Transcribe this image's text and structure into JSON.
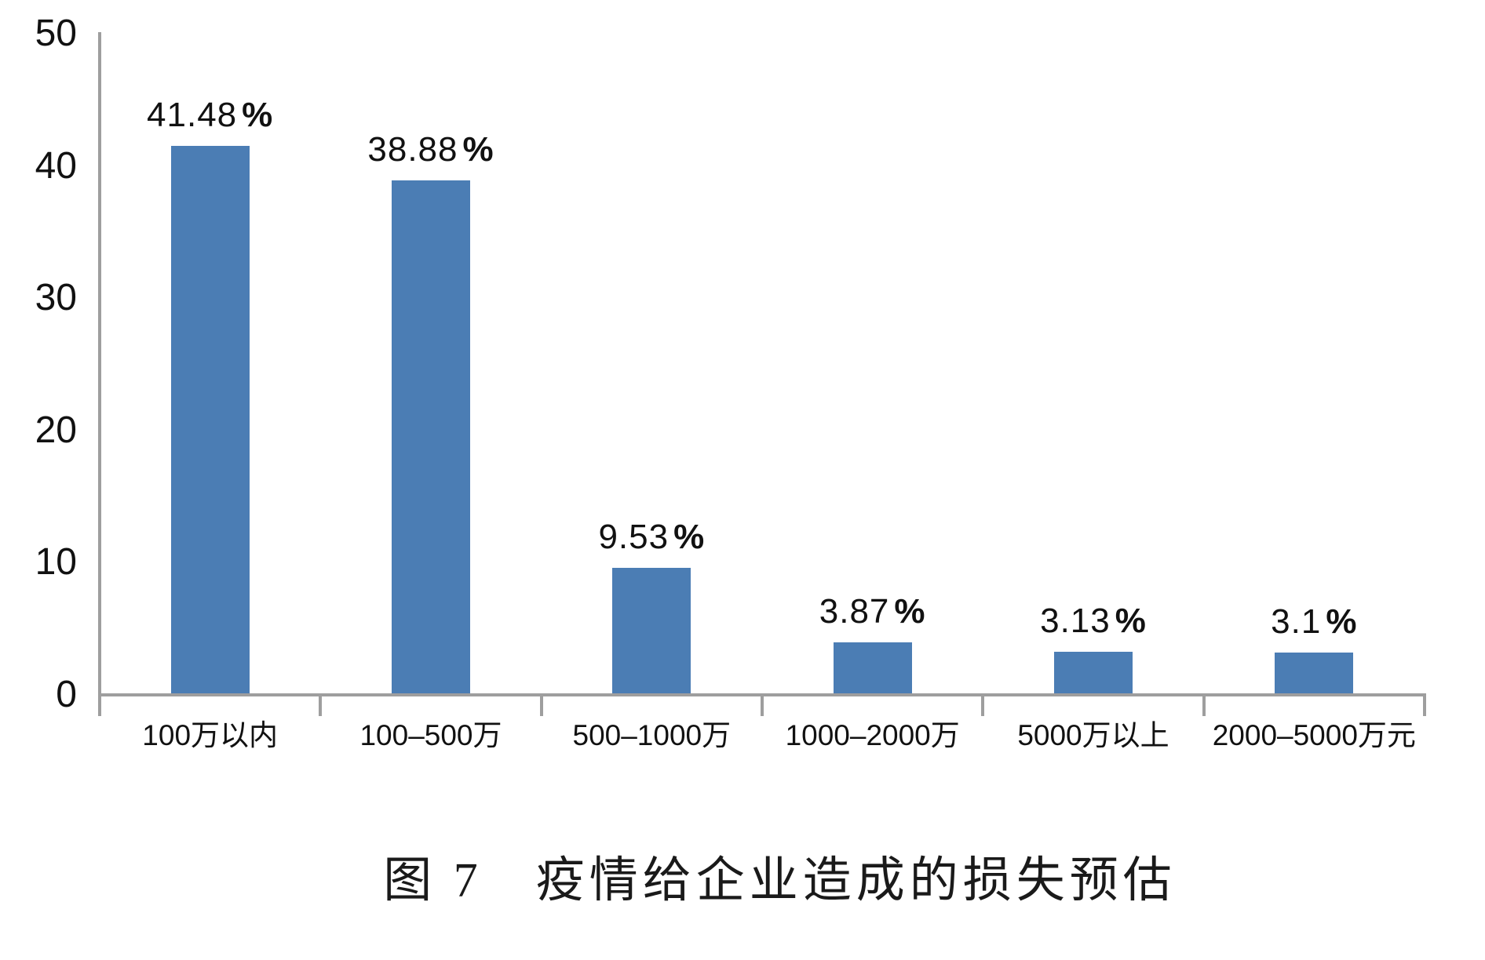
{
  "chart_data": {
    "type": "bar",
    "categories": [
      "100万以内",
      "100–500万",
      "500–1000万",
      "1000–2000万",
      "5000万以上",
      "2000–5000万元"
    ],
    "values": [
      41.48,
      38.88,
      9.53,
      3.87,
      3.13,
      3.1
    ],
    "value_labels": [
      "41.48%",
      "38.88%",
      "9.53%",
      "3.87%",
      "3.13%",
      "3.1%"
    ],
    "title": "图 7　疫情给企业造成的损失预估",
    "xlabel": "",
    "ylabel": "",
    "ylim": [
      0,
      50
    ],
    "yticks": [
      0,
      10,
      20,
      30,
      40,
      50
    ],
    "grid": false,
    "legend": null,
    "bar_color": "#4b7db4",
    "axis_color": "#9e9e9e",
    "text_color": "#111111"
  }
}
